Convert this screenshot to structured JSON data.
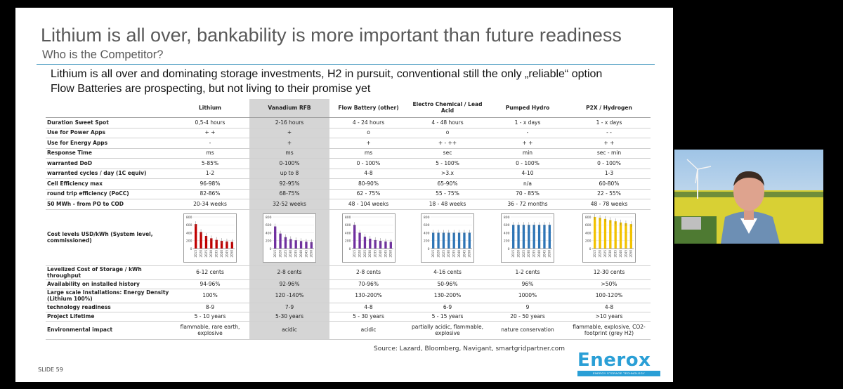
{
  "slide": {
    "title": "Lithium is all over, bankability is more important than future readiness",
    "subtitle": "Who is the Competitor?",
    "bullets": [
      "Lithium is all over and dominating storage investments, H2 in pursuit, conventional still the only „reliable“ option",
      "Flow Batteries are prospecting, but not living to their promise yet"
    ],
    "source": "Source: Lazard, Bloomberg, Navigant, smartgridpartner.com",
    "slide_number": "SLIDE 59",
    "logo": "Enerox",
    "logo_tagline": "ENERGY STORAGE TECHNOLOGY"
  },
  "table": {
    "columns": [
      "",
      "Lithium",
      "Vanadium RFB",
      "Flow Battery (other)",
      "Electro Chemical / Lead Acid",
      "Pumped Hydro",
      "P2X / Hydrogen"
    ],
    "rows_before": [
      {
        "label": "Duration Sweet Spot",
        "cells": [
          "0,5-4 hours",
          "2-16 hours",
          "4 - 24 hours",
          "4 - 48 hours",
          "1 - x days",
          "1 - x days"
        ]
      },
      {
        "label": "Use for Power Apps",
        "cells": [
          "+ +",
          "+",
          "o",
          "o",
          "-",
          "- -"
        ]
      },
      {
        "label": "Use for Energy Apps",
        "cells": [
          "-",
          "+",
          "+",
          "+ - ++",
          "+ +",
          "+ +"
        ]
      },
      {
        "label": "Response Time",
        "cells": [
          "ms",
          "ms",
          "ms",
          "sec",
          "min",
          "sec - min"
        ]
      },
      {
        "label": "warranted DoD",
        "cells": [
          "5-85%",
          "0-100%",
          "0 - 100%",
          "5 - 100%",
          "0 - 100%",
          "0 - 100%"
        ]
      },
      {
        "label": "warranted cycles / day (1C equiv)",
        "cells": [
          "1-2",
          "up to 8",
          "4-8",
          ">3.x",
          "4-10",
          "1-3"
        ]
      },
      {
        "label": "Cell Efficiency max",
        "cells": [
          "96-98%",
          "92-95%",
          "80-90%",
          "65-90%",
          "n/a",
          "60-80%"
        ]
      },
      {
        "label": "round trip efficiency (PoCC)",
        "cells": [
          "82-86%",
          "68-75%",
          "62 - 75%",
          "55 - 75%",
          "70 - 85%",
          "22 - 55%"
        ]
      },
      {
        "label": "50 MWh - from PO to COD",
        "cells": [
          "20-34 weeks",
          "32-52 weeks",
          "48 - 104 weeks",
          "18 - 48 weeks",
          "36 - 72 months",
          "48 - 78 weeks"
        ]
      }
    ],
    "cost_row_label": "Cost levels USD/kWh    (System level,  commissioned)",
    "rows_after": [
      {
        "label": "Levelized Cost of Storage / kWh throughput",
        "cells": [
          "6-12 cents",
          "2-8 cents",
          "2-8 cents",
          "4-16 cents",
          "1-2 cents",
          "12-30 cents"
        ]
      },
      {
        "label": "Availability on installed history",
        "cells": [
          "94-96%",
          "92-96%",
          "70-96%",
          "50-96%",
          "96%",
          ">50%"
        ]
      },
      {
        "label": "Large scale Installations: Energy Density (Lithium 100%)",
        "cells": [
          "100%",
          "120 -140%",
          "130-200%",
          "130-200%",
          "1000%",
          "100-120%"
        ]
      },
      {
        "label": "technology readiness",
        "cells": [
          "8-9",
          "7-9",
          "4-8",
          "6-9",
          "9",
          "4-8"
        ]
      },
      {
        "label": "Project Lifetime",
        "cells": [
          "5 - 10 years",
          "5-30 years",
          "5 - 30 years",
          "5 - 15 years",
          "20 - 50 years",
          ">10 years"
        ]
      },
      {
        "label": "Environmental impact",
        "cells": [
          "flammable, rare earth, explosive",
          "acidic",
          "acidic",
          "partially acidic, flammable, explosive",
          "nature conservation",
          "flammable, explosive, CO2-footprint (grey H2)"
        ]
      }
    ]
  },
  "chart_data": [
    {
      "type": "bar",
      "series_name": "Lithium",
      "color": "#c00000",
      "categories": [
        "2015",
        "2020",
        "2025",
        "2030",
        "2035",
        "2040",
        "2045",
        "2050"
      ],
      "values": [
        620,
        420,
        320,
        260,
        220,
        195,
        180,
        170
      ],
      "ylim": [
        0,
        800
      ],
      "yticks": [
        "800",
        "600",
        "400",
        "200",
        "0"
      ]
    },
    {
      "type": "bar",
      "series_name": "Vanadium RFB",
      "color": "#7030a0",
      "categories": [
        "2015",
        "2020",
        "2025",
        "2030",
        "2035",
        "2040",
        "2045",
        "2050"
      ],
      "values": [
        560,
        380,
        290,
        240,
        210,
        190,
        175,
        165
      ],
      "ylim": [
        0,
        800
      ],
      "yticks": [
        "800",
        "600",
        "400",
        "200",
        "0"
      ]
    },
    {
      "type": "bar",
      "series_name": "Flow Battery (other)",
      "color": "#7030a0",
      "categories": [
        "2015",
        "2020",
        "2025",
        "2030",
        "2035",
        "2040",
        "2045",
        "2050"
      ],
      "values": [
        600,
        400,
        300,
        250,
        215,
        195,
        180,
        170
      ],
      "ylim": [
        0,
        800
      ],
      "yticks": [
        "800",
        "600",
        "400",
        "200",
        "0"
      ]
    },
    {
      "type": "bar",
      "series_name": "Electro Chemical / Lead Acid",
      "color": "#2e75b6",
      "categories": [
        "2015",
        "2020",
        "2025",
        "2030",
        "2035",
        "2040",
        "2045",
        "2050"
      ],
      "values": [
        400,
        400,
        400,
        400,
        400,
        400,
        400,
        400
      ],
      "ylim": [
        0,
        800
      ],
      "yticks": [
        "800",
        "600",
        "400",
        "200",
        "0"
      ]
    },
    {
      "type": "bar",
      "series_name": "Pumped Hydro",
      "color": "#2e75b6",
      "categories": [
        "2015",
        "2020",
        "2025",
        "2030",
        "2035",
        "2040",
        "2045",
        "2050"
      ],
      "values": [
        600,
        600,
        600,
        600,
        600,
        600,
        600,
        600
      ],
      "ylim": [
        0,
        800
      ],
      "yticks": [
        "800",
        "600",
        "400",
        "200",
        "0"
      ]
    },
    {
      "type": "bar",
      "series_name": "P2X / Hydrogen",
      "color": "#f2c200",
      "categories": [
        "2015",
        "2020",
        "2025",
        "2030",
        "2035",
        "2040",
        "2045",
        "2050"
      ],
      "values": [
        800,
        780,
        750,
        720,
        690,
        660,
        640,
        620
      ],
      "ylim": [
        0,
        800
      ],
      "yticks": [
        "800",
        "600",
        "400",
        "200",
        "0"
      ]
    }
  ],
  "video": {
    "participant": "speaker-video"
  }
}
